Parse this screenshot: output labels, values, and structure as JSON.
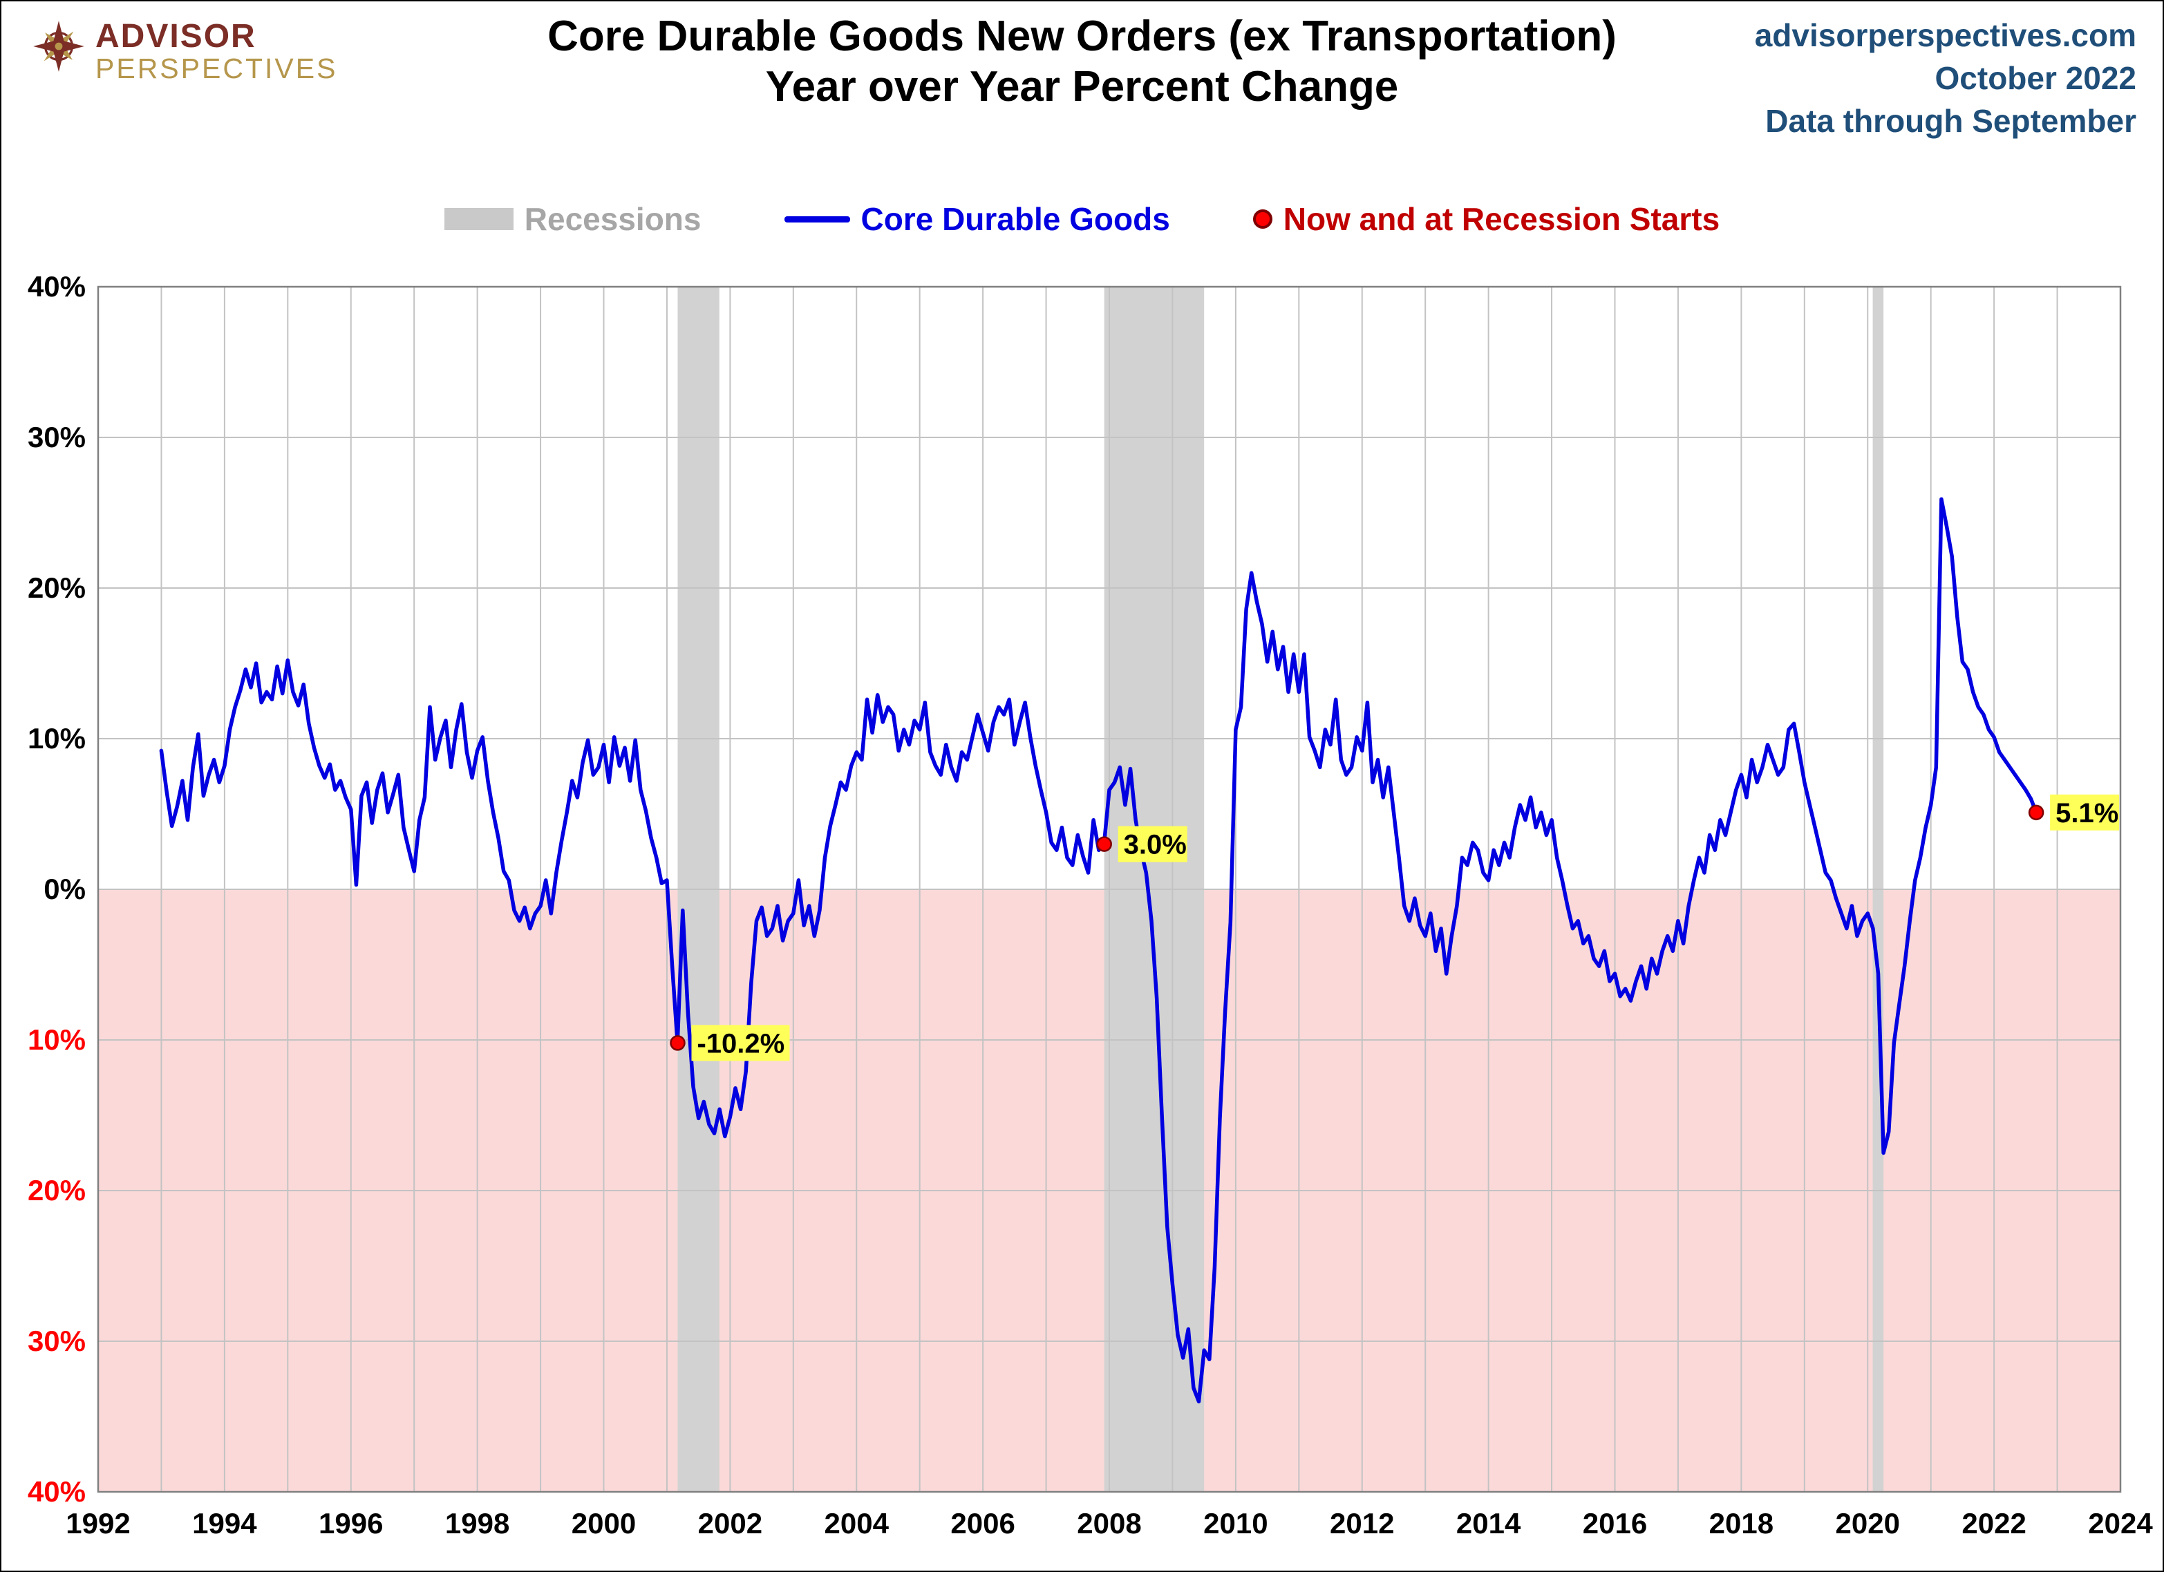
{
  "header": {
    "title_line1": "Core Durable Goods New Orders (ex Transportation)",
    "title_line2": "Year over Year Percent Change",
    "logo_line1": "ADVISOR",
    "logo_line2": "PERSPECTIVES",
    "source_site": "advisorperspectives.com",
    "source_date": "October 2022",
    "source_note": "Data through September"
  },
  "legend": {
    "recessions": "Recessions",
    "series": "Core Durable Goods",
    "markers": "Now and at Recession Starts"
  },
  "colors": {
    "line": "#0000E0",
    "marker_fill": "#FF0000",
    "marker_stroke": "#7F0000",
    "recession_band": "#D2D2D2",
    "below_zero": "#FBD9D9",
    "grid": "#C3C3C3",
    "border": "#808080",
    "negative_tick": "#FF0000",
    "positive_tick": "#000000",
    "marker_label_bg": "#FFFF5A",
    "legend_recession_text": "#A6A6A6",
    "legend_marker_text": "#C00000",
    "source_text": "#1F4E79",
    "logo_red": "#7B2D26",
    "logo_gold": "#B5964B"
  },
  "chart_data": {
    "type": "line",
    "title": "Core Durable Goods New Orders (ex Transportation) Year over Year Percent Change",
    "xlabel": "",
    "ylabel": "",
    "grid": true,
    "legend_position": "top",
    "x_range": [
      1992,
      2024
    ],
    "y_range": [
      -40,
      40
    ],
    "x_ticks": [
      1992,
      1994,
      1996,
      1998,
      2000,
      2002,
      2004,
      2006,
      2008,
      2010,
      2012,
      2014,
      2016,
      2018,
      2020,
      2022,
      2024
    ],
    "y_ticks": [
      {
        "value": 40,
        "label": "40%"
      },
      {
        "value": 30,
        "label": "30%"
      },
      {
        "value": 20,
        "label": "20%"
      },
      {
        "value": 10,
        "label": "10%"
      },
      {
        "value": 0,
        "label": "0%"
      },
      {
        "value": -10,
        "label": "10%"
      },
      {
        "value": -20,
        "label": "20%"
      },
      {
        "value": -30,
        "label": "30%"
      },
      {
        "value": -40,
        "label": "40%"
      }
    ],
    "recessions": [
      {
        "start": 2001.17,
        "end": 2001.83
      },
      {
        "start": 2007.92,
        "end": 2009.5
      },
      {
        "start": 2020.08,
        "end": 2020.25
      }
    ],
    "markers": [
      {
        "x": 2001.17,
        "y": -10.2,
        "label": "-10.2%"
      },
      {
        "x": 2007.92,
        "y": 3.0,
        "label": "3.0%"
      },
      {
        "x": 2022.667,
        "y": 5.1,
        "label": "5.1%"
      }
    ],
    "series": [
      {
        "name": "Core Durable Goods",
        "x_start": 1993.0,
        "points_per_year": 12,
        "values": [
          9.2,
          6.5,
          4.2,
          5.5,
          7.2,
          4.6,
          8.1,
          10.3,
          6.2,
          7.6,
          8.6,
          7.1,
          8.2,
          10.6,
          12.1,
          13.2,
          14.6,
          13.4,
          15.0,
          12.4,
          13.1,
          12.6,
          14.8,
          13.0,
          15.2,
          13.1,
          12.2,
          13.6,
          11.0,
          9.4,
          8.2,
          7.4,
          8.3,
          6.6,
          7.2,
          6.1,
          5.3,
          0.3,
          6.2,
          7.1,
          4.4,
          6.6,
          7.7,
          5.1,
          6.3,
          7.6,
          4.1,
          2.6,
          1.2,
          4.6,
          6.1,
          12.1,
          8.6,
          10.1,
          11.2,
          8.1,
          10.6,
          12.3,
          9.1,
          7.4,
          9.2,
          10.1,
          7.2,
          5.1,
          3.4,
          1.2,
          0.6,
          -1.4,
          -2.1,
          -1.2,
          -2.6,
          -1.6,
          -1.1,
          0.6,
          -1.6,
          1.1,
          3.2,
          5.1,
          7.2,
          6.1,
          8.4,
          9.9,
          7.6,
          8.1,
          9.6,
          7.1,
          10.1,
          8.2,
          9.4,
          7.2,
          9.9,
          6.6,
          5.2,
          3.4,
          2.1,
          0.4,
          0.6,
          -5.1,
          -10.2,
          -1.4,
          -8.2,
          -13.1,
          -15.2,
          -14.1,
          -15.6,
          -16.2,
          -14.6,
          -16.4,
          -15.1,
          -13.2,
          -14.6,
          -12.1,
          -6.2,
          -2.1,
          -1.2,
          -3.1,
          -2.6,
          -1.1,
          -3.4,
          -2.1,
          -1.6,
          0.6,
          -2.4,
          -1.1,
          -3.1,
          -1.4,
          2.1,
          4.2,
          5.6,
          7.1,
          6.6,
          8.2,
          9.1,
          8.6,
          12.6,
          10.4,
          12.9,
          11.1,
          12.1,
          11.6,
          9.2,
          10.6,
          9.6,
          11.2,
          10.6,
          12.4,
          9.1,
          8.2,
          7.6,
          9.6,
          8.1,
          7.2,
          9.1,
          8.6,
          10.1,
          11.6,
          10.4,
          9.2,
          11.1,
          12.1,
          11.6,
          12.6,
          9.6,
          11.1,
          12.4,
          10.1,
          8.2,
          6.6,
          5.1,
          3.1,
          2.6,
          4.1,
          2.1,
          1.6,
          3.6,
          2.2,
          1.1,
          4.6,
          2.6,
          3.0,
          6.6,
          7.1,
          8.1,
          5.6,
          8.0,
          4.6,
          2.6,
          1.1,
          -2.1,
          -7.2,
          -15.1,
          -22.4,
          -26.2,
          -29.6,
          -31.1,
          -29.2,
          -33.1,
          -34.0,
          -30.6,
          -31.2,
          -25.1,
          -15.2,
          -8.1,
          -2.2,
          10.6,
          12.1,
          18.6,
          21.0,
          19.1,
          17.6,
          15.1,
          17.1,
          14.6,
          16.1,
          13.1,
          15.6,
          13.1,
          15.6,
          10.1,
          9.2,
          8.1,
          10.6,
          9.6,
          12.6,
          8.6,
          7.6,
          8.1,
          10.1,
          9.2,
          12.4,
          7.1,
          8.6,
          6.1,
          8.1,
          5.1,
          2.1,
          -1.1,
          -2.1,
          -0.6,
          -2.4,
          -3.1,
          -1.6,
          -4.1,
          -2.6,
          -5.6,
          -3.1,
          -1.1,
          2.1,
          1.6,
          3.1,
          2.6,
          1.1,
          0.6,
          2.6,
          1.6,
          3.1,
          2.1,
          4.1,
          5.6,
          4.6,
          6.1,
          4.1,
          5.1,
          3.6,
          4.6,
          2.1,
          0.6,
          -1.1,
          -2.6,
          -2.1,
          -3.6,
          -3.1,
          -4.6,
          -5.1,
          -4.1,
          -6.1,
          -5.6,
          -7.1,
          -6.6,
          -7.4,
          -6.1,
          -5.1,
          -6.6,
          -4.6,
          -5.6,
          -4.1,
          -3.1,
          -4.1,
          -2.1,
          -3.6,
          -1.1,
          0.6,
          2.1,
          1.1,
          3.6,
          2.6,
          4.6,
          3.6,
          5.1,
          6.6,
          7.6,
          6.1,
          8.6,
          7.1,
          8.1,
          9.6,
          8.6,
          7.6,
          8.1,
          10.6,
          11.0,
          9.1,
          7.1,
          5.6,
          4.1,
          2.6,
          1.1,
          0.6,
          -0.6,
          -1.6,
          -2.6,
          -1.1,
          -3.1,
          -2.1,
          -1.6,
          -2.6,
          -5.6,
          -17.5,
          -16.1,
          -10.2,
          -7.6,
          -5.1,
          -2.1,
          0.6,
          2.1,
          4.1,
          5.6,
          8.1,
          25.9,
          24.1,
          22.1,
          18.1,
          15.1,
          14.6,
          13.1,
          12.1,
          11.6,
          10.6,
          10.1,
          9.1,
          8.6,
          8.1,
          7.6,
          7.1,
          6.6,
          6.0,
          5.1
        ]
      }
    ]
  }
}
